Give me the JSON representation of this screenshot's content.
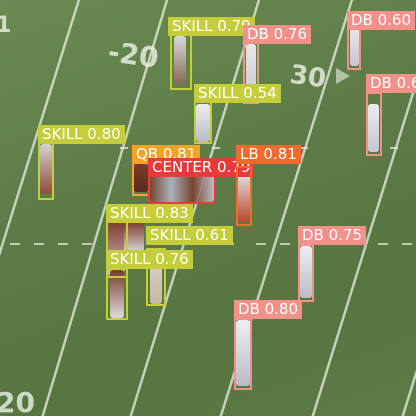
{
  "colors": {
    "skill": "#c5cd3a",
    "db": "#f2908a",
    "qb": "#f4a326",
    "lb": "#f26a2c",
    "center": "#e83a3a"
  },
  "detections": [
    {
      "id": "skill-top",
      "cls": "skill",
      "label": "SKILL 0.79"
    },
    {
      "id": "db-top-center",
      "cls": "db",
      "label": "DB 0.76"
    },
    {
      "id": "db-top-right",
      "cls": "db",
      "label": "DB 0.60"
    },
    {
      "id": "db-right",
      "cls": "db",
      "label": "DB 0.6"
    },
    {
      "id": "skill-mid",
      "cls": "skill",
      "label": "SKILL 0.54"
    },
    {
      "id": "skill-left",
      "cls": "skill",
      "label": "SKILL 0.80"
    },
    {
      "id": "qb",
      "cls": "qb",
      "label": "QB 0.81"
    },
    {
      "id": "lb",
      "cls": "lb",
      "label": "LB 0.81"
    },
    {
      "id": "center",
      "cls": "center",
      "label": "CENTER 0.79"
    },
    {
      "id": "skill-083",
      "cls": "skill",
      "label": "SKILL 0.83"
    },
    {
      "id": "skill-061",
      "cls": "skill",
      "label": "SKILL 0.61"
    },
    {
      "id": "skill-076",
      "cls": "skill",
      "label": "SKILL 0.76"
    },
    {
      "id": "db-075",
      "cls": "db",
      "label": "DB 0.75"
    },
    {
      "id": "db-080",
      "cls": "db",
      "label": "DB 0.80"
    }
  ]
}
